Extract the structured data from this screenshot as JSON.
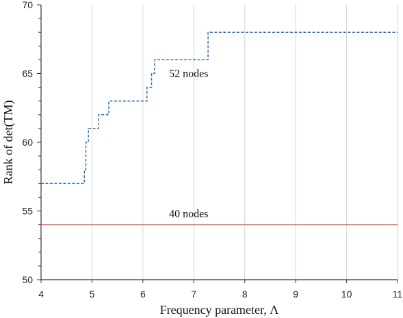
{
  "chart_data": {
    "type": "line",
    "xlabel": "Frequency parameter, Λ",
    "ylabel": "Rank of  det(TM)",
    "xlim": [
      4,
      11
    ],
    "ylim": [
      50,
      70
    ],
    "x_ticks": [
      4,
      5,
      6,
      7,
      8,
      9,
      10,
      11
    ],
    "y_ticks": [
      50,
      55,
      60,
      65,
      70
    ],
    "grid": "vertical",
    "series": [
      {
        "name": "52 nodes",
        "color": "#2f6fbf",
        "style": "dashed-step",
        "points": [
          [
            4,
            57
          ],
          [
            4.85,
            57
          ],
          [
            4.85,
            58
          ],
          [
            4.88,
            58
          ],
          [
            4.88,
            60
          ],
          [
            4.93,
            60
          ],
          [
            4.93,
            61
          ],
          [
            5.13,
            61
          ],
          [
            5.13,
            62
          ],
          [
            5.33,
            62
          ],
          [
            5.33,
            63
          ],
          [
            6.08,
            63
          ],
          [
            6.08,
            64
          ],
          [
            6.17,
            64
          ],
          [
            6.17,
            65
          ],
          [
            6.23,
            65
          ],
          [
            6.23,
            66
          ],
          [
            7.28,
            66
          ],
          [
            7.28,
            68
          ],
          [
            11,
            68
          ]
        ]
      },
      {
        "name": "40 nodes",
        "color": "#e8625a",
        "style": "solid",
        "points": [
          [
            4,
            54
          ],
          [
            11,
            54
          ]
        ]
      }
    ],
    "annotations": [
      {
        "text": "52 nodes",
        "x": 6.9,
        "y": 65
      },
      {
        "text": "40 nodes",
        "x": 6.9,
        "y": 54.8
      }
    ]
  }
}
